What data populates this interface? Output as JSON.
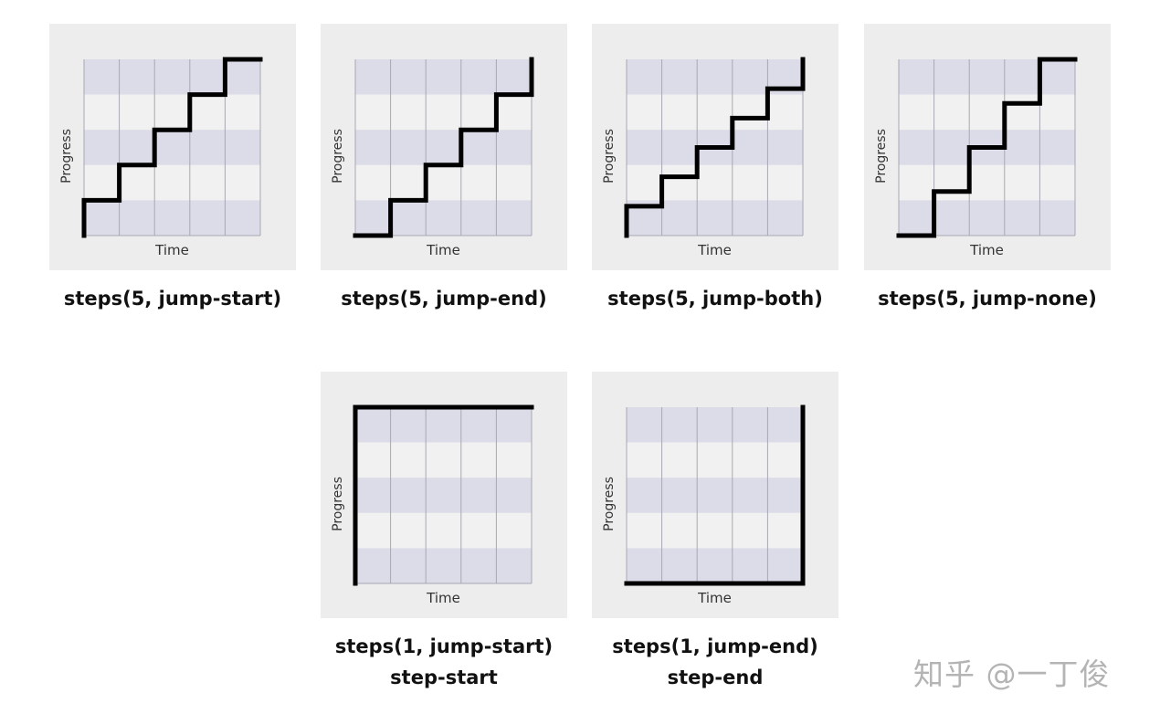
{
  "chart_data": [
    {
      "type": "line",
      "caption": [
        "steps(5, jump-start)"
      ],
      "xlabel": "Time",
      "ylabel": "Progress",
      "intervals": 5,
      "start": 0,
      "levels": [
        0.2,
        0.4,
        0.6,
        0.8,
        1.0
      ],
      "end": 1.0,
      "xlim": [
        0,
        1
      ],
      "ylim": [
        0,
        1
      ]
    },
    {
      "type": "line",
      "caption": [
        "steps(5, jump-end)"
      ],
      "xlabel": "Time",
      "ylabel": "Progress",
      "intervals": 5,
      "start": 0,
      "levels": [
        0,
        0.2,
        0.4,
        0.6,
        0.8
      ],
      "end": 1.0,
      "xlim": [
        0,
        1
      ],
      "ylim": [
        0,
        1
      ]
    },
    {
      "type": "line",
      "caption": [
        "steps(5, jump-both)"
      ],
      "xlabel": "Time",
      "ylabel": "Progress",
      "intervals": 5,
      "start": 0,
      "levels": [
        0.1667,
        0.3333,
        0.5,
        0.6667,
        0.8333
      ],
      "end": 1.0,
      "xlim": [
        0,
        1
      ],
      "ylim": [
        0,
        1
      ]
    },
    {
      "type": "line",
      "caption": [
        "steps(5, jump-none)"
      ],
      "xlabel": "Time",
      "ylabel": "Progress",
      "intervals": 5,
      "start": 0,
      "levels": [
        0,
        0.25,
        0.5,
        0.75,
        1.0
      ],
      "end": 1.0,
      "xlim": [
        0,
        1
      ],
      "ylim": [
        0,
        1
      ]
    },
    {
      "type": "line",
      "caption": [
        "steps(1, jump-start)",
        "step-start"
      ],
      "xlabel": "Time",
      "ylabel": "Progress",
      "intervals": 1,
      "start": 0,
      "levels": [
        1.0
      ],
      "end": 1.0,
      "xlim": [
        0,
        1
      ],
      "ylim": [
        0,
        1
      ]
    },
    {
      "type": "line",
      "caption": [
        "steps(1, jump-end)",
        "step-end"
      ],
      "xlabel": "Time",
      "ylabel": "Progress",
      "intervals": 1,
      "start": 0,
      "levels": [
        0
      ],
      "end": 1.0,
      "xlim": [
        0,
        1
      ],
      "ylim": [
        0,
        1
      ]
    }
  ],
  "watermark": "知乎 @一丁俊",
  "colors": {
    "panel": "#ededed",
    "band_dark": "#dcdce8",
    "band_light": "#f1f1f1",
    "grid": "#a8a8b4",
    "line": "#000000"
  }
}
